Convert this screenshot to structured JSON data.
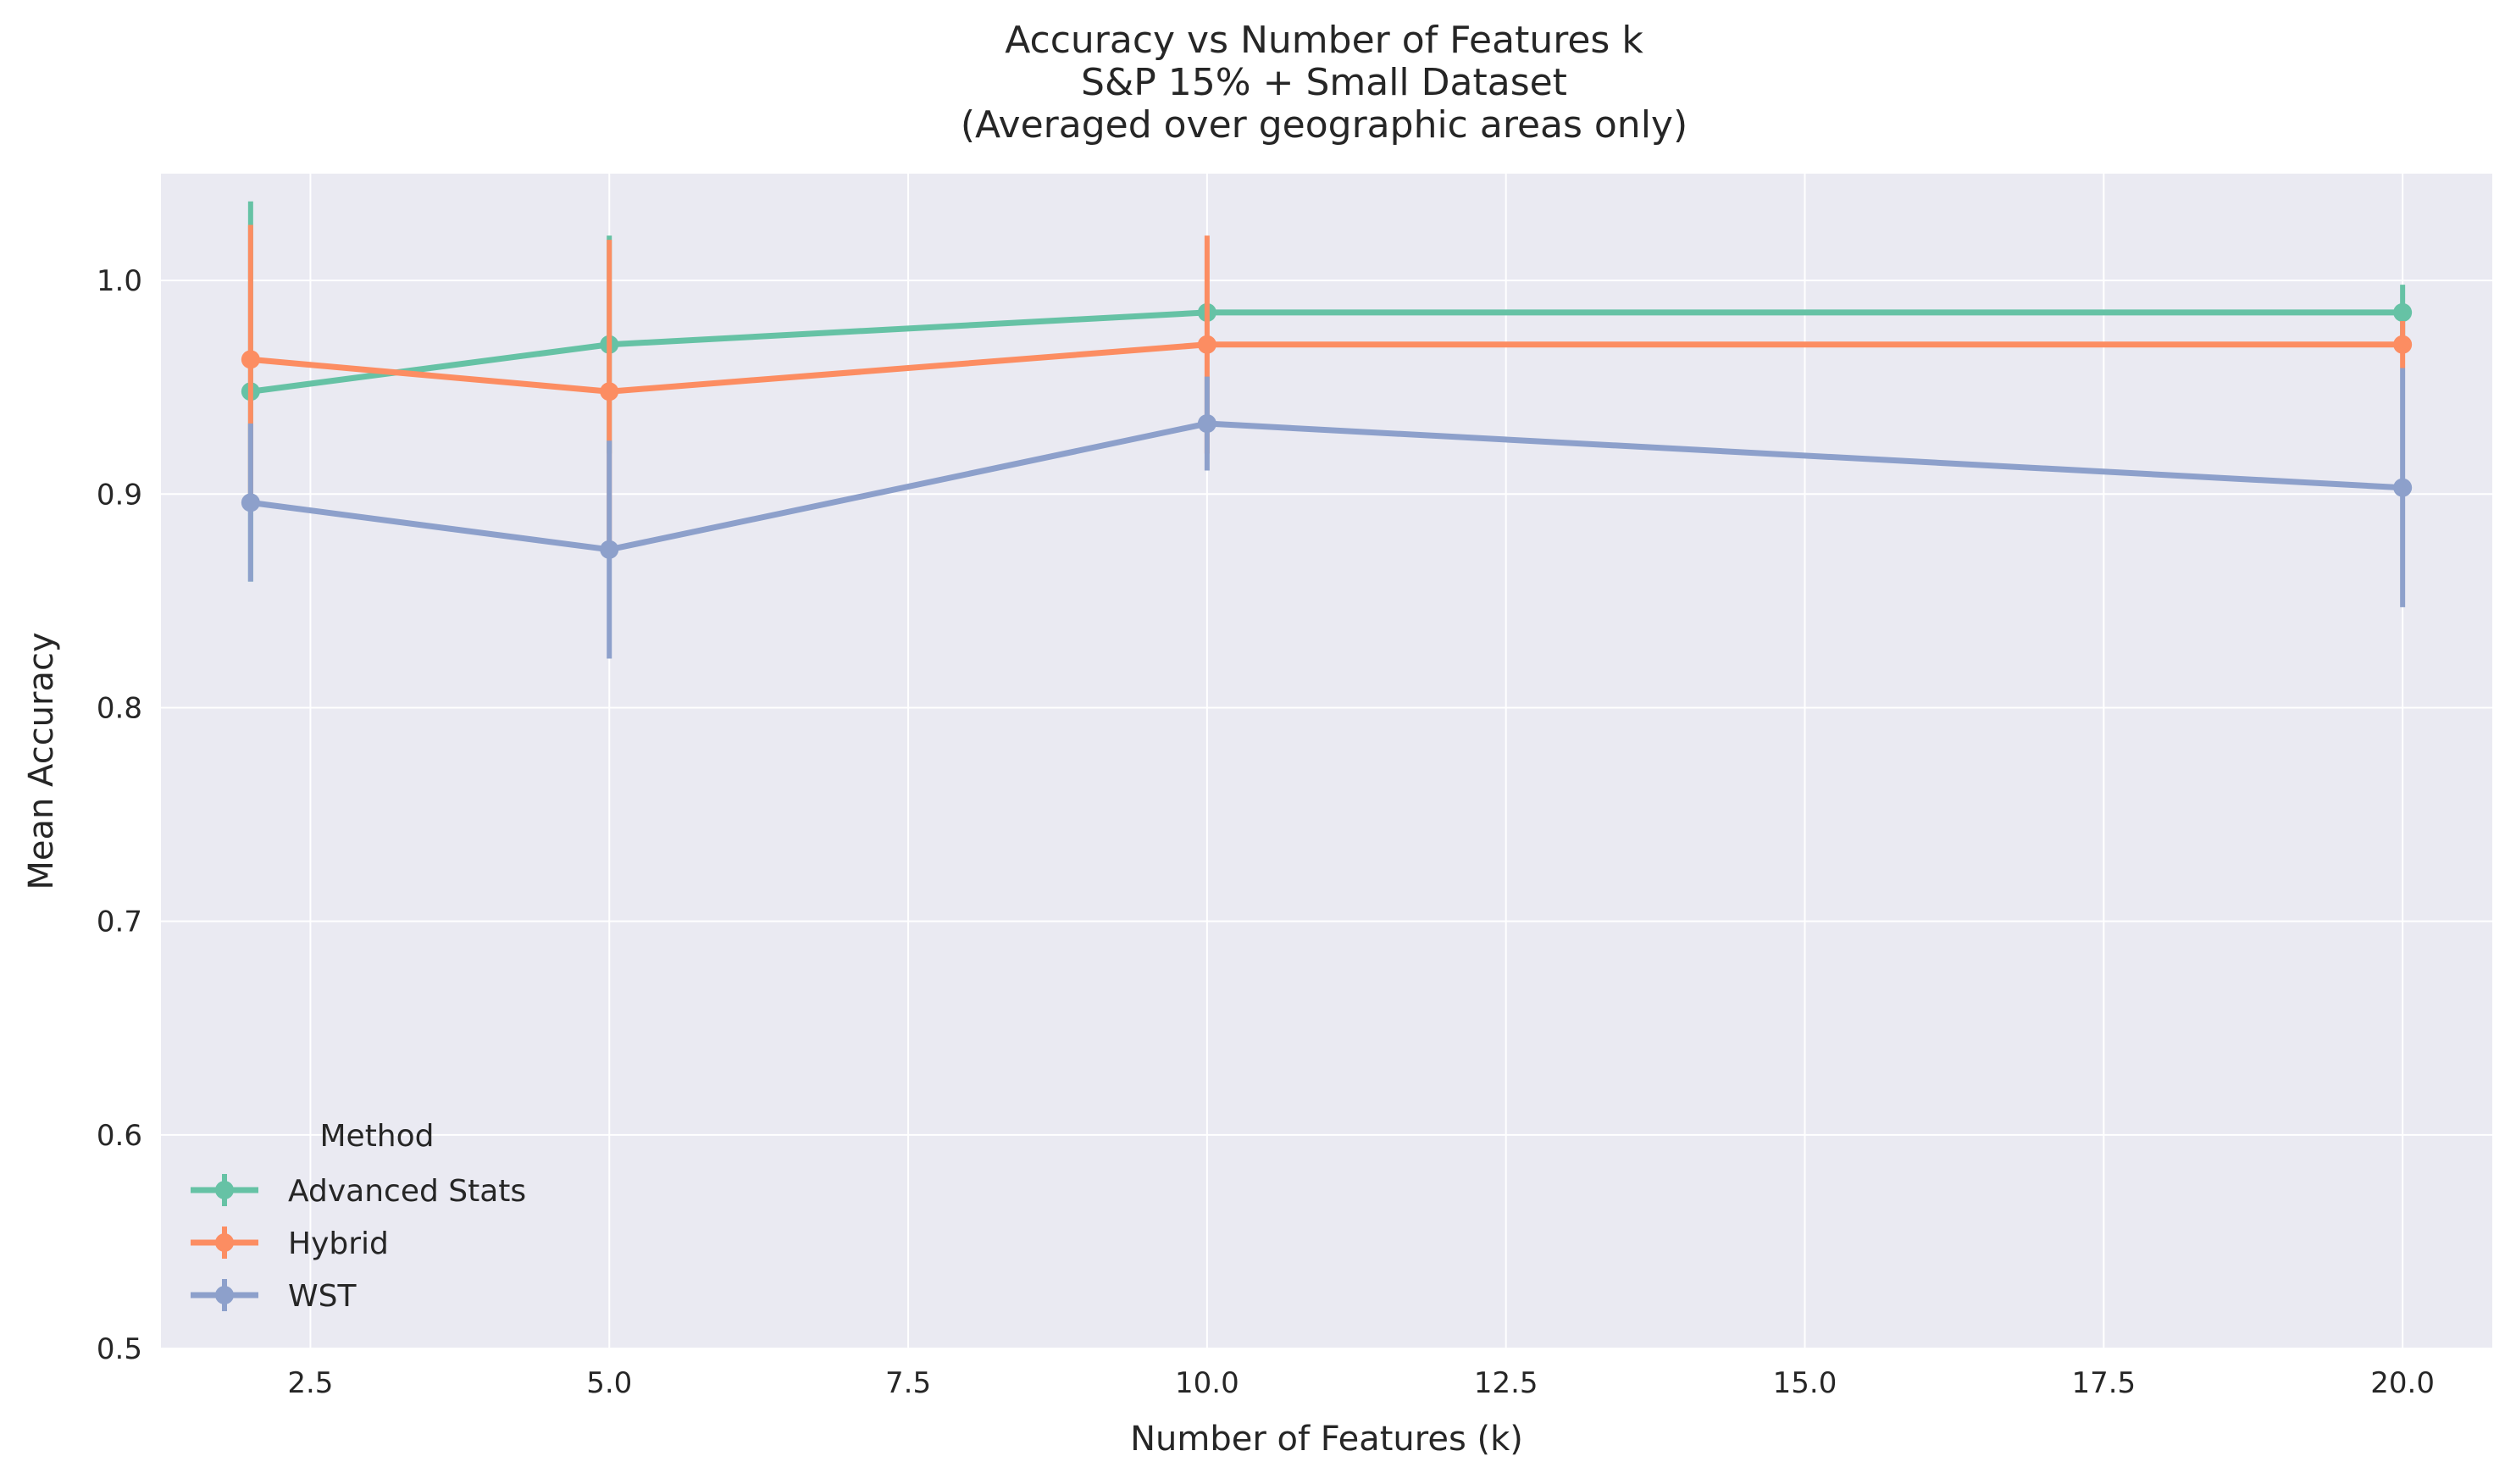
{
  "chart_data": {
    "type": "line",
    "title_lines": [
      "Accuracy vs Number of Features k",
      "S&P 15% + Small Dataset",
      "(Averaged over geographic areas only)"
    ],
    "xlabel": "Number of Features (k)",
    "ylabel": "Mean Accuracy",
    "xlim": [
      1.25,
      20.75
    ],
    "ylim": [
      0.5,
      1.05
    ],
    "x_ticks": [
      2.5,
      5.0,
      7.5,
      10.0,
      12.5,
      15.0,
      17.5,
      20.0
    ],
    "x_tick_labels": [
      "2.5",
      "5.0",
      "7.5",
      "10.0",
      "12.5",
      "15.0",
      "17.5",
      "20.0"
    ],
    "y_ticks": [
      0.5,
      0.6,
      0.7,
      0.8,
      0.9,
      1.0
    ],
    "y_tick_labels": [
      "0.5",
      "0.6",
      "0.7",
      "0.8",
      "0.9",
      "1.0"
    ],
    "grid": true,
    "legend": {
      "title": "Method",
      "placement": "lower-left"
    },
    "x": [
      2,
      5,
      10,
      20
    ],
    "series": [
      {
        "name": "Advanced Stats",
        "color": "#66c2a5",
        "values": [
          0.948,
          0.97,
          0.985,
          0.985
        ],
        "errors": [
          0.089,
          0.051,
          0.0,
          0.013
        ]
      },
      {
        "name": "Hybrid",
        "color": "#fc8d62",
        "values": [
          0.963,
          0.948,
          0.97,
          0.97
        ],
        "errors": [
          0.063,
          0.071,
          0.051,
          0.011
        ]
      },
      {
        "name": "WST",
        "color": "#8da0cb",
        "values": [
          0.896,
          0.874,
          0.933,
          0.903
        ],
        "errors": [
          0.037,
          0.051,
          0.022,
          0.056
        ]
      }
    ]
  }
}
